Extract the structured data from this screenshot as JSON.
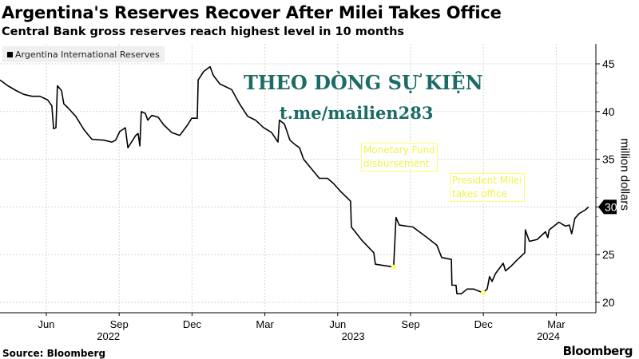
{
  "header": {
    "title": "Argentina's Reserves Recover After Milei Takes Office",
    "subtitle": "Central Bank gross reserves reach highest level in 10 months"
  },
  "watermark": {
    "line1": "THEO DÒNG SỰ KIỆN",
    "line2": "t.me/mailien283"
  },
  "footer": {
    "source": "Source: Bloomberg",
    "logo": "Bloomberg"
  },
  "colors": {
    "line": "#000000",
    "annotation": "#ffff66",
    "watermark": "#1b6b66",
    "legend_bg": "#efefef"
  },
  "chart_data": {
    "type": "line",
    "title": "Argentina's Reserves Recover After Milei Takes Office",
    "subtitle": "Central Bank gross reserves reach highest level in 10 months",
    "xlabel": "",
    "ylabel": "million dollars",
    "ylim": [
      20,
      45
    ],
    "xlim_decimal_year": [
      2022.258,
      2024.285
    ],
    "yticks": [
      "20",
      "25",
      "30",
      "35",
      "40",
      "45"
    ],
    "ytick_values": [
      20,
      25,
      30,
      35,
      40,
      45
    ],
    "xticks": [
      {
        "label": "Jun",
        "x": 2022.417
      },
      {
        "label": "Sep",
        "x": 2022.667
      },
      {
        "label": "Dec",
        "x": 2022.917
      },
      {
        "label": "Mar",
        "x": 2023.167
      },
      {
        "label": "Jun",
        "x": 2023.417
      },
      {
        "label": "Sep",
        "x": 2023.667
      },
      {
        "label": "Dec",
        "x": 2023.917
      },
      {
        "label": "Mar",
        "x": 2024.167
      }
    ],
    "year_labels": [
      {
        "label": "2022",
        "x": 2022.63
      },
      {
        "label": "2023",
        "x": 2023.47
      },
      {
        "label": "2024",
        "x": 2024.14
      }
    ],
    "grid": true,
    "legend": {
      "position": "top-left",
      "entries": [
        "Argentina International Reserves"
      ]
    },
    "last_value_label": "30",
    "series": [
      {
        "name": "Argentina International Reserves",
        "points": [
          [
            2022.258,
            43.3
          ],
          [
            2022.285,
            42.7
          ],
          [
            2022.313,
            42.2
          ],
          [
            2022.34,
            41.8
          ],
          [
            2022.368,
            41.6
          ],
          [
            2022.395,
            41.6
          ],
          [
            2022.422,
            41.2
          ],
          [
            2022.436,
            40.6
          ],
          [
            2022.442,
            38.2
          ],
          [
            2022.45,
            38.3
          ],
          [
            2022.455,
            42.7
          ],
          [
            2022.469,
            42.2
          ],
          [
            2022.477,
            40.8
          ],
          [
            2022.491,
            40.4
          ],
          [
            2022.518,
            39.5
          ],
          [
            2022.546,
            38.1
          ],
          [
            2022.573,
            37.1
          ],
          [
            2022.614,
            37.0
          ],
          [
            2022.642,
            36.8
          ],
          [
            2022.655,
            37.0
          ],
          [
            2022.669,
            37.9
          ],
          [
            2022.688,
            38.3
          ],
          [
            2022.697,
            36.2
          ],
          [
            2022.705,
            36.6
          ],
          [
            2022.724,
            37.5
          ],
          [
            2022.732,
            37.7
          ],
          [
            2022.738,
            36.4
          ],
          [
            2022.743,
            40.0
          ],
          [
            2022.757,
            39.8
          ],
          [
            2022.765,
            39.1
          ],
          [
            2022.779,
            39.6
          ],
          [
            2022.801,
            39.4
          ],
          [
            2022.82,
            38.6
          ],
          [
            2022.847,
            37.8
          ],
          [
            2022.875,
            37.5
          ],
          [
            2022.902,
            38.6
          ],
          [
            2022.916,
            39.3
          ],
          [
            2022.935,
            39.3
          ],
          [
            2022.938,
            43.3
          ],
          [
            2022.957,
            44.2
          ],
          [
            2022.979,
            44.7
          ],
          [
            2022.99,
            43.8
          ],
          [
            2023.012,
            42.9
          ],
          [
            2023.053,
            42.3
          ],
          [
            2023.08,
            40.8
          ],
          [
            2023.108,
            39.5
          ],
          [
            2023.135,
            39.1
          ],
          [
            2023.163,
            38.3
          ],
          [
            2023.19,
            37.8
          ],
          [
            2023.212,
            36.8
          ],
          [
            2023.217,
            39.1
          ],
          [
            2023.234,
            38.7
          ],
          [
            2023.253,
            37.0
          ],
          [
            2023.272,
            36.5
          ],
          [
            2023.286,
            36.2
          ],
          [
            2023.3,
            35.0
          ],
          [
            2023.327,
            34.0
          ],
          [
            2023.354,
            33.0
          ],
          [
            2023.382,
            33.0
          ],
          [
            2023.401,
            32.5
          ],
          [
            2023.428,
            31.6
          ],
          [
            2023.461,
            30.6
          ],
          [
            2023.464,
            27.9
          ],
          [
            2023.5,
            26.5
          ],
          [
            2023.541,
            25.2
          ],
          [
            2023.546,
            24.0
          ],
          [
            2023.609,
            23.7
          ],
          [
            2023.617,
            28.9
          ],
          [
            2023.628,
            28.1
          ],
          [
            2023.675,
            27.9
          ],
          [
            2023.719,
            26.9
          ],
          [
            2023.757,
            26.0
          ],
          [
            2023.774,
            24.7
          ],
          [
            2023.807,
            24.5
          ],
          [
            2023.809,
            21.8
          ],
          [
            2023.823,
            21.8
          ],
          [
            2023.826,
            20.9
          ],
          [
            2023.842,
            20.9
          ],
          [
            2023.861,
            21.4
          ],
          [
            2023.883,
            21.4
          ],
          [
            2023.916,
            21.0
          ],
          [
            2023.93,
            21.4
          ],
          [
            2023.938,
            22.7
          ],
          [
            2023.947,
            22.2
          ],
          [
            2023.958,
            23.0
          ],
          [
            2023.985,
            24.1
          ],
          [
            2023.993,
            23.3
          ],
          [
            2024.012,
            23.8
          ],
          [
            2024.031,
            24.4
          ],
          [
            2024.059,
            25.2
          ],
          [
            2024.061,
            27.6
          ],
          [
            2024.075,
            26.4
          ],
          [
            2024.102,
            26.6
          ],
          [
            2024.13,
            27.4
          ],
          [
            2024.138,
            26.8
          ],
          [
            2024.143,
            27.6
          ],
          [
            2024.176,
            28.4
          ],
          [
            2024.198,
            28.0
          ],
          [
            2024.212,
            28.1
          ],
          [
            2024.22,
            27.2
          ],
          [
            2024.231,
            28.8
          ],
          [
            2024.245,
            29.3
          ],
          [
            2024.267,
            29.7
          ],
          [
            2024.278,
            30.0
          ]
        ]
      }
    ],
    "annotations": [
      {
        "text_line1": "Monetary Fund",
        "text_line2": "disbursement",
        "x": 2023.609,
        "y": 23.7
      },
      {
        "text_line1": "President Milei",
        "text_line2": "takes office",
        "x": 2023.916,
        "y": 21.0
      }
    ]
  }
}
